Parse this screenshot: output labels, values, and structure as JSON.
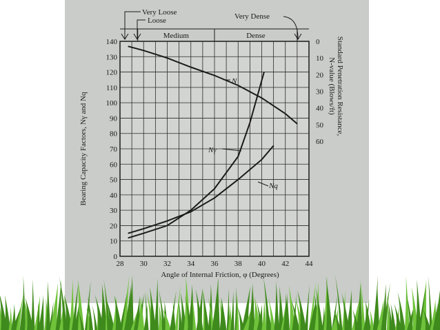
{
  "chart_data": {
    "type": "line",
    "xlabel": "Angle of Internal Friction, φ (Degrees)",
    "ylabel": "Bearing Capacity Factors, Nγ and Nq",
    "y2label_line1": "Standard Penetration Resistance,",
    "y2label_line2": "N-value (Blows/ft)",
    "xlim": [
      28,
      44
    ],
    "ylim": [
      0,
      140
    ],
    "y2lim": [
      0,
      60
    ],
    "x_ticks": [
      "28",
      "30",
      "32",
      "34",
      "36",
      "38",
      "40",
      "42",
      "44"
    ],
    "y_ticks": [
      "0",
      "10",
      "20",
      "30",
      "40",
      "50",
      "60",
      "70",
      "80",
      "90",
      "100",
      "110",
      "120",
      "130",
      "140"
    ],
    "y2_ticks": [
      "0",
      "10",
      "20",
      "30",
      "40",
      "50",
      "60"
    ],
    "density_bands": {
      "very_loose": "Very Loose",
      "loose": "Loose",
      "medium": "Medium",
      "dense": "Dense",
      "very_dense": "Very Dense"
    },
    "series": [
      {
        "name": "N",
        "axis": "right",
        "x": [
          28.7,
          30,
          32,
          34,
          36,
          38,
          40,
          42,
          43
        ],
        "y": [
          3.0,
          5.5,
          10.0,
          15.5,
          20.5,
          26.5,
          34.0,
          43.5,
          49.5
        ]
      },
      {
        "name": "Nγ",
        "axis": "left",
        "x": [
          28.7,
          30,
          32,
          34,
          36,
          38,
          39,
          40.2
        ],
        "y": [
          12,
          15,
          20,
          30,
          44,
          65,
          87,
          120
        ]
      },
      {
        "name": "Nq",
        "axis": "left",
        "x": [
          28.7,
          30,
          32,
          34,
          36,
          38,
          40,
          41
        ],
        "y": [
          15,
          18,
          23,
          29,
          38,
          50,
          63,
          72
        ]
      }
    ]
  },
  "colors": {
    "background": "#c9ccc9",
    "line": "#1a1a1a",
    "grass": "#3f8a1c",
    "grass_light": "#6fc23a"
  }
}
